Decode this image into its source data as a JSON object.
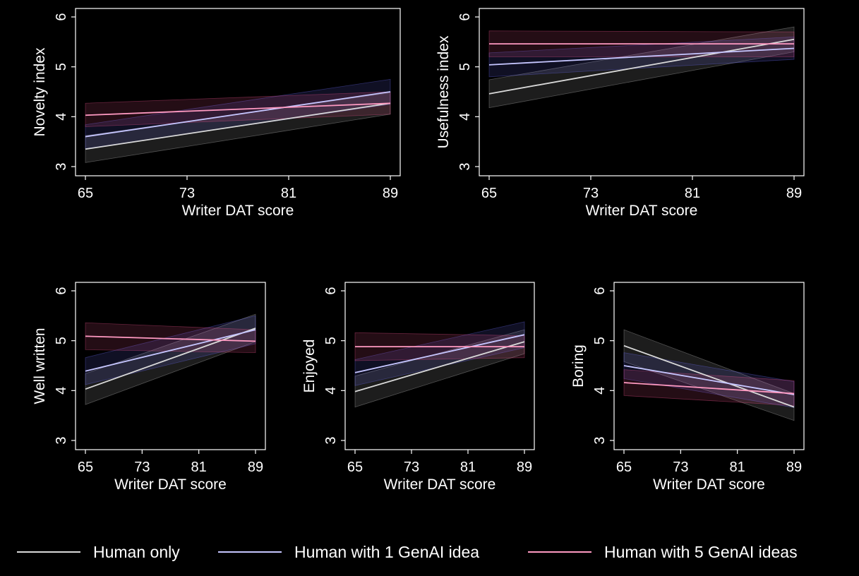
{
  "chart_data": [
    {
      "type": "line",
      "panel": "novelty",
      "xlabel": "Writer DAT score",
      "ylabel": "Novelty index",
      "xticks": [
        65,
        73,
        81,
        89
      ],
      "yticks": [
        3,
        4,
        5,
        6
      ],
      "xlim": [
        65,
        89
      ],
      "ylim": [
        3,
        6
      ],
      "grid": false,
      "series": [
        {
          "key": "human",
          "x": [
            65,
            89
          ],
          "y": [
            3.35,
            4.27
          ],
          "ci_lower": [
            3.08,
            4.05
          ],
          "ci_upper": [
            3.62,
            4.48
          ]
        },
        {
          "key": "genai1",
          "x": [
            65,
            89
          ],
          "y": [
            3.6,
            4.5
          ],
          "ci_lower": [
            3.36,
            4.25
          ],
          "ci_upper": [
            3.84,
            4.75
          ]
        },
        {
          "key": "genai5",
          "x": [
            65,
            89
          ],
          "y": [
            4.03,
            4.27
          ],
          "ci_lower": [
            3.8,
            4.05
          ],
          "ci_upper": [
            4.27,
            4.5
          ]
        }
      ]
    },
    {
      "type": "line",
      "panel": "usefulness",
      "xlabel": "Writer DAT score",
      "ylabel": "Usefulness index",
      "xticks": [
        65,
        73,
        81,
        89
      ],
      "yticks": [
        3,
        4,
        5,
        6
      ],
      "xlim": [
        65,
        89
      ],
      "ylim": [
        3,
        6
      ],
      "grid": false,
      "series": [
        {
          "key": "human",
          "x": [
            65,
            89
          ],
          "y": [
            4.46,
            5.55
          ],
          "ci_lower": [
            4.18,
            5.3
          ],
          "ci_upper": [
            4.74,
            5.8
          ]
        },
        {
          "key": "genai1",
          "x": [
            65,
            89
          ],
          "y": [
            5.04,
            5.37
          ],
          "ci_lower": [
            4.8,
            5.15
          ],
          "ci_upper": [
            5.28,
            5.6
          ]
        },
        {
          "key": "genai5",
          "x": [
            65,
            89
          ],
          "y": [
            5.46,
            5.46
          ],
          "ci_lower": [
            5.2,
            5.2
          ],
          "ci_upper": [
            5.72,
            5.7
          ]
        }
      ]
    },
    {
      "type": "line",
      "panel": "well-written",
      "xlabel": "Writer DAT score",
      "ylabel": "Well written",
      "xticks": [
        65,
        73,
        81,
        89
      ],
      "yticks": [
        3,
        4,
        5,
        6
      ],
      "xlim": [
        65,
        89
      ],
      "ylim": [
        3,
        6
      ],
      "grid": false,
      "series": [
        {
          "key": "human",
          "x": [
            65,
            89
          ],
          "y": [
            4.03,
            5.25
          ],
          "ci_lower": [
            3.72,
            4.98
          ],
          "ci_upper": [
            4.34,
            5.53
          ]
        },
        {
          "key": "genai1",
          "x": [
            65,
            89
          ],
          "y": [
            4.39,
            5.22
          ],
          "ci_lower": [
            4.12,
            4.94
          ],
          "ci_upper": [
            4.66,
            5.5
          ]
        },
        {
          "key": "genai5",
          "x": [
            65,
            89
          ],
          "y": [
            5.09,
            4.99
          ],
          "ci_lower": [
            4.82,
            4.76
          ],
          "ci_upper": [
            5.36,
            5.22
          ]
        }
      ]
    },
    {
      "type": "line",
      "panel": "enjoyed",
      "xlabel": "Writer DAT score",
      "ylabel": "Enjoyed",
      "xticks": [
        65,
        73,
        81,
        89
      ],
      "yticks": [
        3,
        4,
        5,
        6
      ],
      "xlim": [
        65,
        89
      ],
      "ylim": [
        3,
        6
      ],
      "grid": false,
      "series": [
        {
          "key": "human",
          "x": [
            65,
            89
          ],
          "y": [
            3.98,
            4.98
          ],
          "ci_lower": [
            3.67,
            4.74
          ],
          "ci_upper": [
            4.29,
            5.22
          ]
        },
        {
          "key": "genai1",
          "x": [
            65,
            89
          ],
          "y": [
            4.36,
            5.12
          ],
          "ci_lower": [
            4.1,
            4.86
          ],
          "ci_upper": [
            4.62,
            5.38
          ]
        },
        {
          "key": "genai5",
          "x": [
            65,
            89
          ],
          "y": [
            4.88,
            4.88
          ],
          "ci_lower": [
            4.6,
            4.66
          ],
          "ci_upper": [
            5.16,
            5.1
          ]
        }
      ]
    },
    {
      "type": "line",
      "panel": "boring",
      "xlabel": "Writer DAT score",
      "ylabel": "Boring",
      "xticks": [
        65,
        73,
        81,
        89
      ],
      "yticks": [
        3,
        4,
        5,
        6
      ],
      "xlim": [
        65,
        89
      ],
      "ylim": [
        3,
        6
      ],
      "grid": false,
      "series": [
        {
          "key": "human",
          "x": [
            65,
            89
          ],
          "y": [
            4.9,
            3.67
          ],
          "ci_lower": [
            4.58,
            3.4
          ],
          "ci_upper": [
            5.22,
            3.94
          ]
        },
        {
          "key": "genai1",
          "x": [
            65,
            89
          ],
          "y": [
            4.5,
            3.92
          ],
          "ci_lower": [
            4.24,
            3.66
          ],
          "ci_upper": [
            4.76,
            4.18
          ]
        },
        {
          "key": "genai5",
          "x": [
            65,
            89
          ],
          "y": [
            4.16,
            3.94
          ],
          "ci_lower": [
            3.9,
            3.7
          ],
          "ci_upper": [
            4.42,
            4.2
          ]
        }
      ]
    }
  ],
  "legend": {
    "placement": "bottom",
    "items": [
      {
        "key": "human",
        "label": "Human only",
        "color": "#d9d9d9"
      },
      {
        "key": "genai1",
        "label": "Human with 1 GenAI idea",
        "color": "#c6c6ff"
      },
      {
        "key": "genai5",
        "label": "Human with 5 GenAI ideas",
        "color": "#ff9ac2"
      }
    ]
  },
  "colors": {
    "background": "#000000",
    "axes": "#ffffff",
    "human_band": "#cfcfcf",
    "genai1_band": "#6f70ff",
    "genai5_band": "#ff5a97"
  }
}
